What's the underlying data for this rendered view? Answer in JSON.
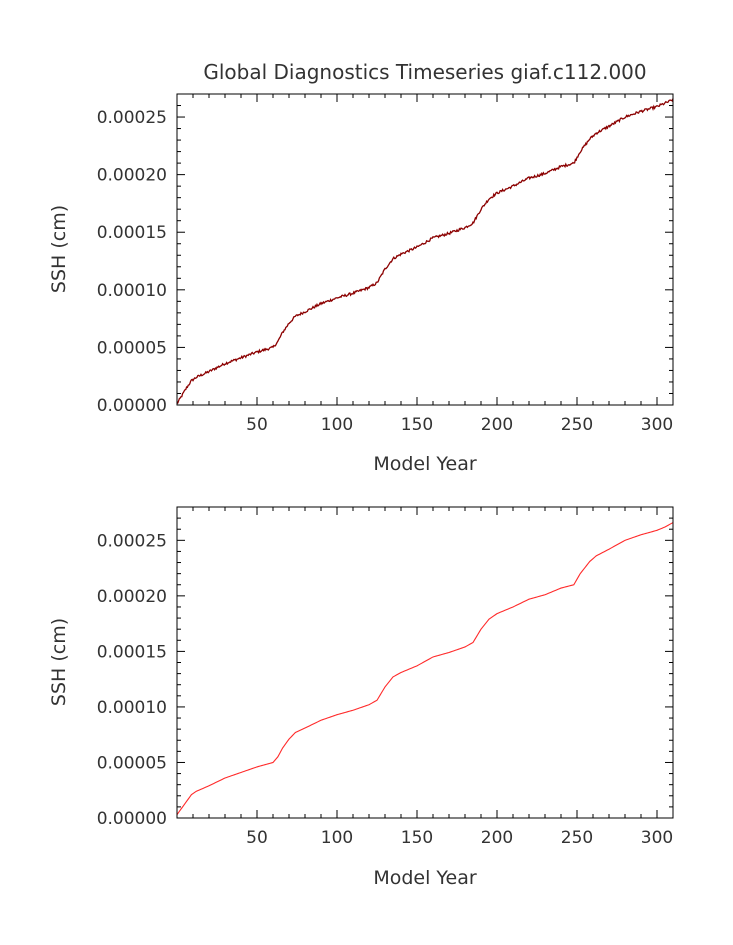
{
  "chart_data": [
    {
      "type": "line",
      "title": "Global Diagnostics Timeseries giaf.c112.000",
      "xlabel": "Model Year",
      "ylabel": "SSH (cm)",
      "xlim": [
        0,
        310
      ],
      "ylim": [
        0,
        0.00027
      ],
      "xticks": [
        "50",
        "100",
        "150",
        "200",
        "250",
        "300"
      ],
      "yticks": [
        "0.00000",
        "0.00005",
        "0.00010",
        "0.00015",
        "0.00020",
        "0.00025"
      ],
      "grid": false,
      "series": [
        {
          "color": "#8b0000",
          "noisy": true,
          "x": [
            0,
            3,
            6,
            9,
            12,
            20,
            30,
            40,
            50,
            60,
            63,
            66,
            70,
            74,
            80,
            90,
            100,
            110,
            120,
            125,
            130,
            135,
            140,
            150,
            160,
            170,
            180,
            185,
            190,
            195,
            200,
            210,
            220,
            230,
            240,
            248,
            252,
            258,
            262,
            270,
            280,
            290,
            300,
            305,
            310
          ],
          "y": [
            1e-06,
            8e-06,
            1.5e-05,
            2.1e-05,
            2.4e-05,
            2.9e-05,
            3.6e-05,
            4.1e-05,
            4.6e-05,
            5e-05,
            5.5e-05,
            6.3e-05,
            7.1e-05,
            7.7e-05,
            8.1e-05,
            8.8e-05,
            9.3e-05,
            9.7e-05,
            0.000102,
            0.000106,
            0.000118,
            0.000127,
            0.000131,
            0.000137,
            0.000145,
            0.000149,
            0.000154,
            0.000158,
            0.00017,
            0.000179,
            0.000184,
            0.00019,
            0.000197,
            0.000201,
            0.000207,
            0.00021,
            0.00022,
            0.000231,
            0.000236,
            0.000242,
            0.00025,
            0.000255,
            0.000259,
            0.000262,
            0.000265
          ]
        }
      ]
    },
    {
      "type": "line",
      "title": "",
      "xlabel": "Model Year",
      "ylabel": "SSH (cm)",
      "xlim": [
        0,
        310
      ],
      "ylim": [
        0,
        0.00028
      ],
      "xticks": [
        "50",
        "100",
        "150",
        "200",
        "250",
        "300"
      ],
      "yticks": [
        "0.00000",
        "0.00005",
        "0.00010",
        "0.00015",
        "0.00020",
        "0.00025"
      ],
      "grid": false,
      "series": [
        {
          "color": "#ff2a2a",
          "noisy": false,
          "x": [
            0,
            3,
            6,
            9,
            12,
            20,
            30,
            40,
            50,
            60,
            63,
            66,
            70,
            74,
            80,
            90,
            100,
            110,
            120,
            125,
            130,
            135,
            140,
            150,
            160,
            170,
            180,
            185,
            190,
            195,
            200,
            210,
            220,
            230,
            240,
            248,
            252,
            258,
            262,
            270,
            280,
            290,
            300,
            305,
            310
          ],
          "y": [
            3e-06,
            9e-06,
            1.5e-05,
            2.1e-05,
            2.4e-05,
            2.9e-05,
            3.6e-05,
            4.1e-05,
            4.6e-05,
            5e-05,
            5.5e-05,
            6.3e-05,
            7.1e-05,
            7.7e-05,
            8.1e-05,
            8.8e-05,
            9.3e-05,
            9.7e-05,
            0.000102,
            0.000106,
            0.000118,
            0.000127,
            0.000131,
            0.000137,
            0.000145,
            0.000149,
            0.000154,
            0.000158,
            0.00017,
            0.000179,
            0.000184,
            0.00019,
            0.000197,
            0.000201,
            0.000207,
            0.00021,
            0.00022,
            0.000231,
            0.000236,
            0.000242,
            0.00025,
            0.000255,
            0.000259,
            0.000262,
            0.000266
          ]
        }
      ]
    }
  ]
}
